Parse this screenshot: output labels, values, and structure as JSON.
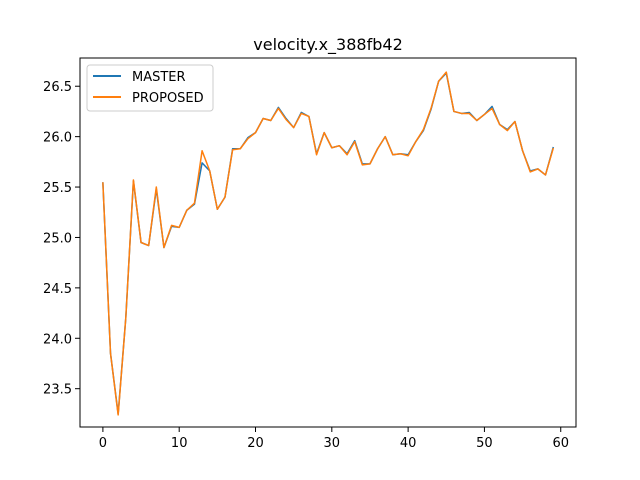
{
  "chart_data": {
    "type": "line",
    "title": "velocity.x_388fb42",
    "xlabel": "",
    "ylabel": "",
    "xlim": [
      -3,
      62
    ],
    "ylim": [
      23.12,
      26.78
    ],
    "xticks": [
      0,
      10,
      20,
      30,
      40,
      50,
      60
    ],
    "yticks": [
      23.5,
      24.0,
      24.5,
      25.0,
      25.5,
      26.0,
      26.5
    ],
    "ytick_labels": [
      "23.5",
      "24.0",
      "24.5",
      "25.0",
      "25.5",
      "26.0",
      "26.5"
    ],
    "grid": false,
    "legend_position": "upper left",
    "x": [
      0,
      1,
      2,
      3,
      4,
      5,
      6,
      7,
      8,
      9,
      10,
      11,
      12,
      13,
      14,
      15,
      16,
      17,
      18,
      19,
      20,
      21,
      22,
      23,
      24,
      25,
      26,
      27,
      28,
      29,
      30,
      31,
      32,
      33,
      34,
      35,
      36,
      37,
      38,
      39,
      40,
      41,
      42,
      43,
      44,
      45,
      46,
      47,
      48,
      49,
      50,
      51,
      52,
      53,
      54,
      55,
      56,
      57,
      58,
      59
    ],
    "series": [
      {
        "name": "MASTER",
        "color": "#1f77b4",
        "values": [
          25.54,
          23.85,
          23.25,
          24.2,
          25.56,
          24.95,
          24.92,
          25.48,
          24.9,
          25.11,
          25.1,
          25.27,
          25.33,
          25.74,
          25.66,
          25.28,
          25.4,
          25.88,
          25.88,
          25.99,
          26.04,
          26.18,
          26.16,
          26.29,
          26.18,
          26.09,
          26.24,
          26.2,
          25.83,
          26.04,
          25.89,
          25.91,
          25.83,
          25.96,
          25.73,
          25.73,
          25.88,
          26.0,
          25.82,
          25.83,
          25.82,
          25.95,
          26.06,
          26.27,
          26.55,
          26.63,
          26.25,
          26.23,
          26.24,
          26.16,
          26.22,
          26.3,
          26.12,
          26.07,
          26.15,
          25.86,
          25.66,
          25.68,
          25.62,
          25.89
        ]
      },
      {
        "name": "PROPOSED",
        "color": "#ff7f0e",
        "values": [
          25.54,
          23.85,
          23.24,
          24.2,
          25.57,
          24.95,
          24.92,
          25.5,
          24.9,
          25.12,
          25.1,
          25.27,
          25.34,
          25.86,
          25.66,
          25.28,
          25.4,
          25.87,
          25.88,
          25.98,
          26.04,
          26.18,
          26.16,
          26.28,
          26.17,
          26.09,
          26.23,
          26.2,
          25.82,
          26.04,
          25.89,
          25.91,
          25.82,
          25.95,
          25.72,
          25.73,
          25.88,
          26.0,
          25.82,
          25.83,
          25.81,
          25.95,
          26.07,
          26.28,
          26.55,
          26.64,
          26.25,
          26.23,
          26.23,
          26.16,
          26.22,
          26.28,
          26.12,
          26.06,
          26.15,
          25.86,
          25.65,
          25.68,
          25.62,
          25.88
        ]
      }
    ]
  }
}
